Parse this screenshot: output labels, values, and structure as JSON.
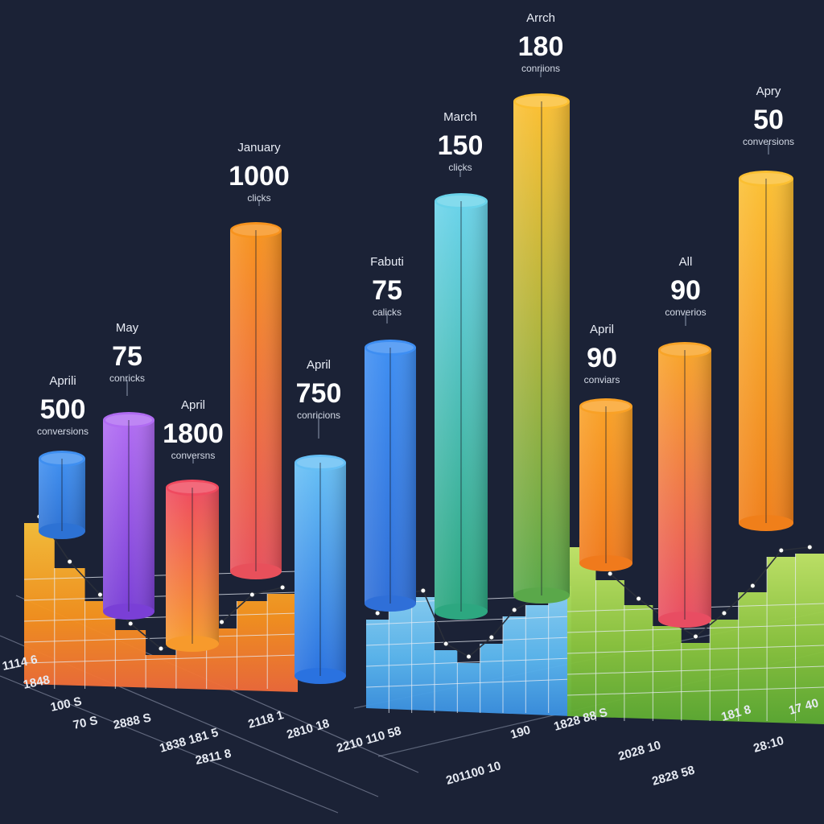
{
  "colors": {
    "background": "#1b2236",
    "text": "#ffffff",
    "orange": "#f7931e",
    "yellow": "#fcc63a",
    "red": "#ef4e55",
    "purple": "#9b5de5",
    "blue": "#3d8fe6",
    "cyan": "#59c9e6",
    "green": "#8ac63f"
  },
  "chart_data": {
    "type": "bar",
    "style": "3d-cylinders-with-step-area",
    "grid": true,
    "legend": "none",
    "bars": [
      {
        "month": "Aprili",
        "value": "500",
        "metric": "conversions",
        "colors": [
          "#3f8ff0",
          "#2d72d4"
        ]
      },
      {
        "month": "May",
        "value": "75",
        "metric": "conricks",
        "colors": [
          "#b06cf2",
          "#7a3fd6"
        ]
      },
      {
        "month": "April",
        "value": "1800",
        "metric": "conversns",
        "colors": [
          "#ef4a5f",
          "#f79a2c"
        ]
      },
      {
        "month": "January",
        "value": "1000",
        "metric": "clicks",
        "colors": [
          "#f7931e",
          "#e8505b"
        ]
      },
      {
        "month": "April",
        "value": "750",
        "metric": "conricions",
        "colors": [
          "#66bff5",
          "#2a72e0"
        ]
      },
      {
        "month": "Fabuti",
        "value": "75",
        "metric": "calicks",
        "colors": [
          "#3e8ef2",
          "#2f6fd8"
        ]
      },
      {
        "month": "March",
        "value": "150",
        "metric": "clicks",
        "colors": [
          "#6ad3ea",
          "#2da780"
        ]
      },
      {
        "month": "Arrch",
        "value": "180",
        "metric": "conriions",
        "colors": [
          "#fbbf32",
          "#5aa84a"
        ]
      },
      {
        "month": "April",
        "value": "90",
        "metric": "conviars",
        "colors": [
          "#f9a126",
          "#f07a1c"
        ]
      },
      {
        "month": "All",
        "value": "90",
        "metric": "converios",
        "colors": [
          "#f8a428",
          "#e84d62"
        ]
      },
      {
        "month": "Apry",
        "value": "50",
        "metric": "conversions",
        "colors": [
          "#fbbf32",
          "#f07f1a"
        ]
      }
    ],
    "areas": [
      {
        "name": "",
        "color": "#f7a21e",
        "values": [
          3,
          2.5,
          1.5,
          1.2,
          1.0,
          1.6,
          2.4,
          3.0,
          2.8
        ]
      },
      {
        "name": "",
        "color": "#5cb8f0",
        "values": [
          2.2,
          2.6,
          1.4,
          1.0,
          1.8,
          2.6,
          3.2,
          2.9,
          2.5
        ]
      },
      {
        "name": "",
        "color": "#8cc63f",
        "values": [
          3.4,
          2.8,
          2.5,
          1.8,
          1.6,
          2.0,
          2.6,
          3.6,
          3.0
        ]
      }
    ],
    "tick_labels_left": [
      "1114 6",
      "1848",
      "100 S",
      "70  S",
      "2888 S",
      "2811 8"
    ],
    "tick_labels_bottom": [
      "1838 181 5",
      "2118 1",
      "2210 110 58",
      "2810 18",
      "201100 10",
      "190",
      "1828 88 S",
      "2028 10",
      "2828 58",
      "181 8",
      "28:10",
      "17 40"
    ]
  }
}
